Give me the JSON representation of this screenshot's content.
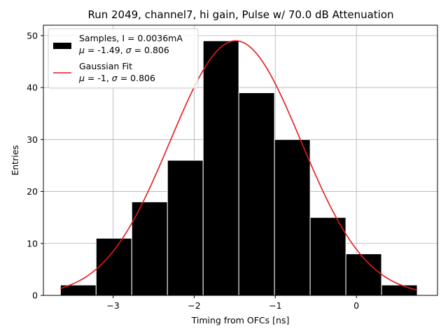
{
  "chart_data": {
    "type": "bar",
    "title": "Run 2049, channel7, hi gain, Pulse w/ 70.0 dB Attenuation",
    "xlabel": "Timing from OFCs [ns]",
    "ylabel": "Entries",
    "xlim": [
      -3.86,
      1.0
    ],
    "ylim": [
      0,
      52
    ],
    "grid": true,
    "legend_position": "top-left",
    "xticks": [
      -3,
      -2,
      -1,
      0
    ],
    "xtick_labels": [
      "−3",
      "−2",
      "−1",
      "0"
    ],
    "yticks": [
      0,
      10,
      20,
      30,
      40,
      50
    ],
    "ytick_labels": [
      "0",
      "10",
      "20",
      "30",
      "40",
      "50"
    ],
    "bin_edges": [
      -3.65,
      -3.21,
      -2.77,
      -2.33,
      -1.89,
      -1.45,
      -1.01,
      -0.57,
      -0.13,
      0.31,
      0.75
    ],
    "counts": [
      2,
      11,
      18,
      26,
      49,
      39,
      30,
      15,
      8,
      2
    ],
    "bar_color": "#000000",
    "bar_edge_color": "#ffffff",
    "fit": {
      "amplitude": 49,
      "mean": -1.49,
      "sigma": 0.806,
      "color": "#e41a1c"
    },
    "legend": [
      {
        "line1": "Samples, I = 0.0036mA",
        "mu_value": "-1.49",
        "sigma_value": "0.806",
        "kind": "bar"
      },
      {
        "line1": "Gaussian Fit",
        "mu_value": "-1",
        "sigma_value": "0.806",
        "kind": "line"
      }
    ]
  }
}
